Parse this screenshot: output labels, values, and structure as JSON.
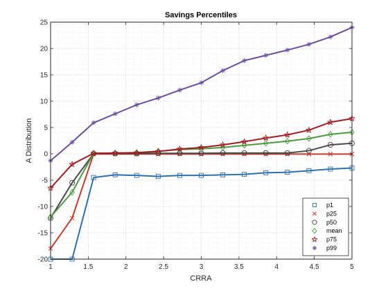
{
  "chart_data": {
    "type": "line",
    "title": "Savings Percentiles",
    "xlabel": "CRRA",
    "ylabel": "A Distribution",
    "xlim": [
      1,
      5
    ],
    "ylim": [
      -20,
      25
    ],
    "xticks": [
      1,
      1.5,
      2,
      2.5,
      3,
      3.5,
      4,
      4.5,
      5
    ],
    "xtick_labels": [
      "1",
      "1.5",
      "2",
      "2.5",
      "3",
      "3.5",
      "4",
      "4.5",
      "5"
    ],
    "yticks": [
      -20,
      -15,
      -10,
      -5,
      0,
      5,
      10,
      15,
      20,
      25
    ],
    "ytick_labels": [
      "-20",
      "-15",
      "-10",
      "-5",
      "0",
      "5",
      "10",
      "15",
      "20",
      "25"
    ],
    "grid": "major and minor dotted",
    "legend_position": "bottom-right",
    "x": [
      1.0,
      1.286,
      1.571,
      1.857,
      2.143,
      2.429,
      2.714,
      3.0,
      3.286,
      3.571,
      3.857,
      4.143,
      4.429,
      4.714,
      5.0
    ],
    "series": [
      {
        "name": "p1",
        "color": "#2e6fb0",
        "marker": "square",
        "values": [
          -20,
          -20,
          -4.5,
          -4.0,
          -4.1,
          -4.3,
          -4.1,
          -4.1,
          -4.0,
          -3.9,
          -3.6,
          -3.5,
          -3.2,
          -2.9,
          -2.7
        ]
      },
      {
        "name": "p25",
        "color": "#c33c2d",
        "marker": "x",
        "values": [
          -18,
          -12.2,
          -0.05,
          -0.05,
          -0.05,
          -0.05,
          -0.05,
          -0.05,
          -0.05,
          -0.05,
          -0.05,
          -0.05,
          -0.05,
          -0.05,
          -0.05
        ]
      },
      {
        "name": "p50",
        "color": "#4a4a4a",
        "marker": "circle",
        "values": [
          -12.2,
          -5.5,
          0.05,
          0.05,
          0.05,
          0.1,
          0.1,
          0.1,
          0.15,
          0.15,
          0.15,
          0.15,
          0.6,
          1.7,
          2.0
        ]
      },
      {
        "name": "mean",
        "color": "#4a9a3e",
        "marker": "diamond",
        "values": [
          -12,
          -7.3,
          0.1,
          0.15,
          0.25,
          0.5,
          0.8,
          0.95,
          1.2,
          1.6,
          2.0,
          2.4,
          2.9,
          3.7,
          4.1
        ]
      },
      {
        "name": "p75",
        "color": "#a11d21",
        "marker": "star",
        "values": [
          -6.5,
          -2.0,
          0.1,
          0.15,
          0.2,
          0.45,
          0.9,
          1.2,
          1.7,
          2.3,
          3.0,
          3.6,
          4.5,
          6.0,
          6.7
        ]
      },
      {
        "name": "p99",
        "color": "#6b4ea0",
        "marker": "asterisk",
        "values": [
          -1.3,
          2.2,
          5.9,
          7.6,
          9.3,
          10.6,
          12.1,
          13.5,
          15.8,
          17.7,
          18.7,
          19.7,
          20.8,
          22.2,
          24.0
        ]
      }
    ]
  }
}
